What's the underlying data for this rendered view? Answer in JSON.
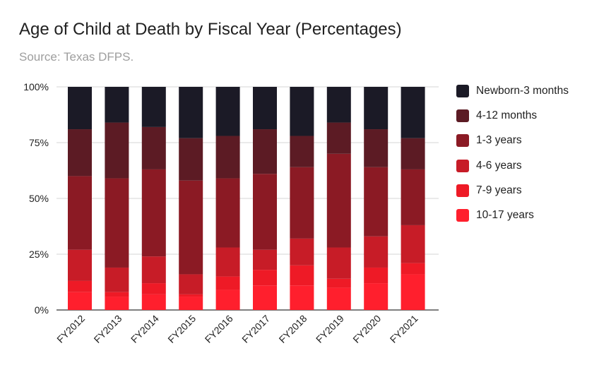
{
  "chart_data": {
    "type": "bar",
    "stacked": true,
    "title": "Age of Child at Death by Fiscal Year (Percentages)",
    "subtitle": "Source: Texas DFPS.",
    "xlabel": "",
    "ylabel": "",
    "ylim": [
      0,
      100
    ],
    "yticks": [
      "0%",
      "25%",
      "50%",
      "75%",
      "100%"
    ],
    "categories": [
      "FY2012",
      "FY2013",
      "FY2014",
      "FY2015",
      "FY2016",
      "FY2017",
      "FY2018",
      "FY2019",
      "FY2020",
      "FY2021"
    ],
    "legend_position": "right",
    "grid": true,
    "series": [
      {
        "name": "10-17 years",
        "color": "#ff1f2d",
        "values": [
          8,
          6,
          7,
          6,
          9,
          11,
          11,
          10,
          12,
          16
        ]
      },
      {
        "name": "7-9 years",
        "color": "#ee1a26",
        "values": [
          5,
          2,
          5,
          1,
          6,
          7,
          9,
          4,
          7,
          5
        ]
      },
      {
        "name": "4-6 years",
        "color": "#c71c27",
        "values": [
          14,
          11,
          12,
          9,
          13,
          9,
          12,
          14,
          14,
          17
        ]
      },
      {
        "name": "1-3 years",
        "color": "#8b1a24",
        "values": [
          33,
          40,
          39,
          42,
          31,
          34,
          32,
          42,
          31,
          25
        ]
      },
      {
        "name": "4-12 months",
        "color": "#5c1b24",
        "values": [
          21,
          25,
          19,
          19,
          19,
          20,
          14,
          14,
          17,
          14
        ]
      },
      {
        "name": "Newborn-3 months",
        "color": "#1b1a26",
        "values": [
          19,
          16,
          18,
          23,
          22,
          19,
          22,
          16,
          19,
          23
        ]
      }
    ]
  },
  "legend_order": [
    "Newborn-3 months",
    "4-12 months",
    "1-3 years",
    "4-6 years",
    "7-9 years",
    "10-17 years"
  ]
}
